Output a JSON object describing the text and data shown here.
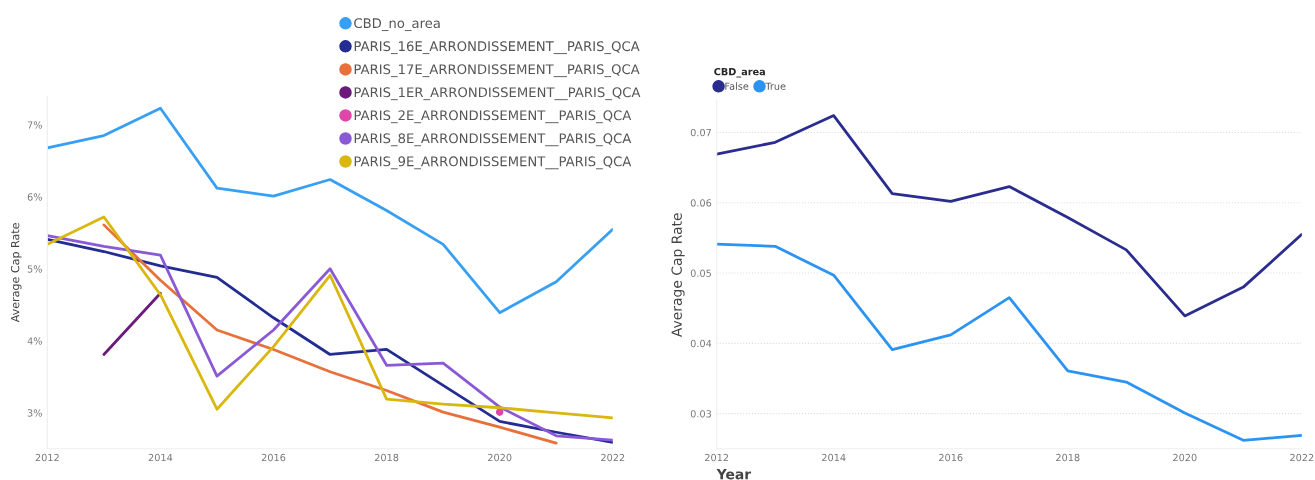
{
  "chart_data": [
    {
      "type": "line",
      "ylabel": "Average Cap Rate",
      "x": [
        2012,
        2013,
        2014,
        2015,
        2016,
        2017,
        2018,
        2019,
        2020,
        2021,
        2022
      ],
      "xlim": [
        2012,
        2022
      ],
      "xticks": [
        2012,
        2014,
        2016,
        2018,
        2020,
        2022
      ],
      "ylim": [
        2.5,
        7.4
      ],
      "yticks": [
        {
          "value": 3,
          "label": "3%"
        },
        {
          "value": 4,
          "label": "4%"
        },
        {
          "value": 5,
          "label": "5%"
        },
        {
          "value": 6,
          "label": "6%"
        },
        {
          "value": 7,
          "label": "7%"
        }
      ],
      "grid": false,
      "legend": "top right",
      "series": [
        {
          "name": "CBD_no_area",
          "color": "#37a0f5",
          "values": [
            6.68,
            6.85,
            7.23,
            6.12,
            6.01,
            6.24,
            5.81,
            5.34,
            4.39,
            4.82,
            5.55
          ]
        },
        {
          "name": "PARIS_16E_ARRONDISSEMENT__PARIS_QCA",
          "color": "#232c91",
          "values": [
            5.41,
            5.24,
            5.04,
            4.88,
            4.32,
            3.81,
            3.88,
            3.38,
            2.88,
            2.73,
            2.59
          ]
        },
        {
          "name": "PARIS_17E_ARRONDISSEMENT__PARIS_QCA",
          "color": "#e8703a",
          "values": [
            null,
            5.61,
            4.84,
            4.15,
            3.88,
            3.57,
            3.31,
            3.01,
            2.8,
            2.58,
            null
          ]
        },
        {
          "name": "PARIS_1ER_ARRONDISSEMENT__PARIS_QCA",
          "color": "#6b1b7a",
          "values": [
            null,
            3.81,
            4.66,
            null,
            null,
            null,
            null,
            null,
            null,
            null,
            null
          ]
        },
        {
          "name": "PARIS_2E_ARRONDISSEMENT__PARIS_QCA",
          "color": "#e046a8",
          "type": "scatter",
          "values": [
            null,
            null,
            null,
            null,
            null,
            null,
            null,
            null,
            3.01,
            null,
            null
          ]
        },
        {
          "name": "PARIS_8E_ARRONDISSEMENT__PARIS_QCA",
          "color": "#8a5ad6",
          "values": [
            5.46,
            5.31,
            5.19,
            3.51,
            4.15,
            5.0,
            3.66,
            3.69,
            3.08,
            2.68,
            2.62
          ]
        },
        {
          "name": "PARIS_9E_ARRONDISSEMENT__PARIS_QCA",
          "color": "#d9b70f",
          "values": [
            5.34,
            5.72,
            4.64,
            3.05,
            3.92,
            4.91,
            3.19,
            3.12,
            3.07,
            3.0,
            2.93
          ]
        }
      ]
    },
    {
      "type": "line",
      "xlabel": "Year",
      "ylabel": "Average Cap Rate",
      "legend_title": "CBD_area",
      "x": [
        2012,
        2013,
        2014,
        2015,
        2016,
        2017,
        2018,
        2019,
        2020,
        2021,
        2022
      ],
      "xlim": [
        2012,
        2022
      ],
      "xticks": [
        2012,
        2014,
        2016,
        2018,
        2020,
        2022
      ],
      "ylim": [
        0.025,
        0.0745
      ],
      "yticks": [
        0.03,
        0.04,
        0.05,
        0.06,
        0.07
      ],
      "grid": "y",
      "legend": "top left",
      "series": [
        {
          "name": "False",
          "color": "#2a2d8f",
          "values": [
            0.0669,
            0.0686,
            0.0724,
            0.0613,
            0.0602,
            0.0623,
            0.0579,
            0.0533,
            0.0439,
            0.048,
            0.0555
          ]
        },
        {
          "name": "True",
          "color": "#2b93f2",
          "values": [
            0.0541,
            0.0538,
            0.0497,
            0.0391,
            0.0412,
            0.0465,
            0.0361,
            0.0345,
            0.0301,
            0.0262,
            0.0269
          ]
        }
      ]
    }
  ]
}
